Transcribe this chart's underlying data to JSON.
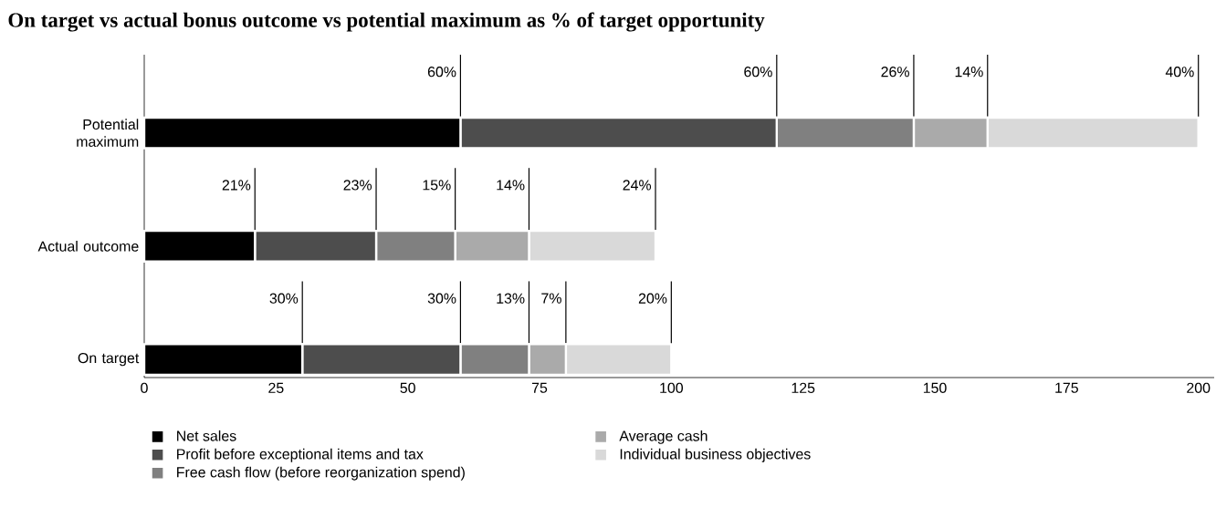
{
  "chart_data": {
    "type": "bar",
    "orientation": "horizontal",
    "stacked": true,
    "title": "On target vs actual bonus outcome vs potential maximum as % of target opportunity",
    "categories": [
      "Potential maximum",
      "Actual outcome",
      "On target"
    ],
    "series": [
      {
        "name": "Net sales",
        "color": "#000000",
        "values": [
          60,
          21,
          30
        ],
        "value_labels": [
          "60%",
          "21%",
          "30%"
        ]
      },
      {
        "name": "Profit before exceptional items and tax",
        "color": "#4d4d4d",
        "values": [
          60,
          23,
          30
        ],
        "value_labels": [
          "60%",
          "23%",
          "30%"
        ]
      },
      {
        "name": "Free cash flow (before reorganization spend)",
        "color": "#808080",
        "values": [
          26,
          15,
          13
        ],
        "value_labels": [
          "26%",
          "15%",
          "13%"
        ]
      },
      {
        "name": "Average cash",
        "color": "#aaaaaa",
        "values": [
          14,
          14,
          7
        ],
        "value_labels": [
          "14%",
          "14%",
          "7%"
        ]
      },
      {
        "name": "Individual business objectives",
        "color": "#d9d9d9",
        "values": [
          40,
          24,
          20
        ],
        "value_labels": [
          "40%",
          "24%",
          "20%"
        ]
      }
    ],
    "xlim": [
      0,
      203
    ],
    "xticks": [
      0,
      25,
      50,
      75,
      100,
      125,
      150,
      175,
      200
    ],
    "legend": "bottom",
    "grid": false
  }
}
